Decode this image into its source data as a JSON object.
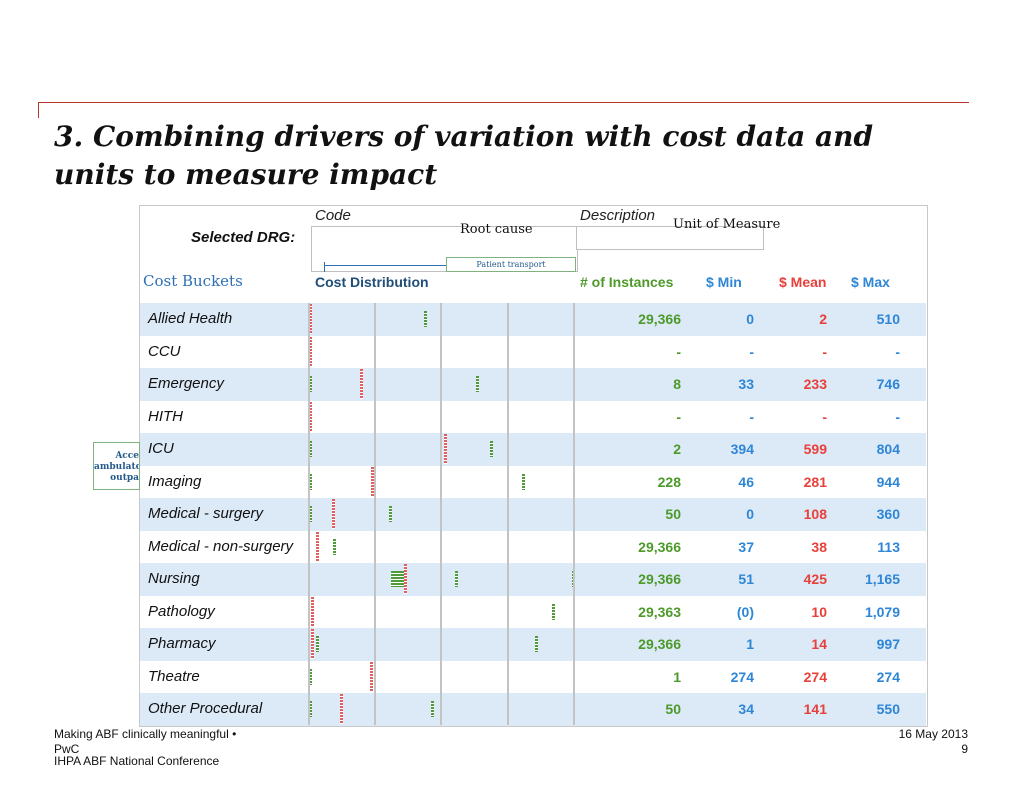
{
  "title": {
    "line1": "3. Combining drivers of variation with cost data and",
    "line2": "units to measure impact"
  },
  "panel": {
    "code_header": "Code",
    "description_header": "Description",
    "selected_drg_label": "Selected DRG:",
    "root_cause_label": "Root cause",
    "unit_of_measure_label": "Unit of Measure",
    "patient_transport_label": "Patient transport",
    "accessory_box_text": "Acce ambulato outpa"
  },
  "columns": {
    "cost_buckets": "Cost Buckets",
    "cost_distribution": "Cost Distribution",
    "instances": "# of Instances",
    "min": "$ Min",
    "mean": "$ Mean",
    "max": "$ Max"
  },
  "rows": [
    {
      "name": "Allied Health",
      "instances": "29,366",
      "min": "0",
      "mean": "2",
      "max": "510"
    },
    {
      "name": "CCU",
      "instances": "-",
      "min": "-",
      "mean": "-",
      "max": "-"
    },
    {
      "name": "Emergency",
      "instances": "8",
      "min": "33",
      "mean": "233",
      "max": "746"
    },
    {
      "name": "HITH",
      "instances": "-",
      "min": "-",
      "mean": "-",
      "max": "-"
    },
    {
      "name": "ICU",
      "instances": "2",
      "min": "394",
      "mean": "599",
      "max": "804"
    },
    {
      "name": "Imaging",
      "instances": "228",
      "min": "46",
      "mean": "281",
      "max": "944"
    },
    {
      "name": "Medical - surgery",
      "instances": "50",
      "min": "0",
      "mean": "108",
      "max": "360"
    },
    {
      "name": "Medical - non-surgery",
      "instances": "29,366",
      "min": "37",
      "mean": "38",
      "max": "113"
    },
    {
      "name": "Nursing",
      "instances": "29,366",
      "min": "51",
      "mean": "425",
      "max": "1,165"
    },
    {
      "name": "Pathology",
      "instances": "29,363",
      "min": "(0)",
      "mean": "10",
      "max": "1,079"
    },
    {
      "name": "Pharmacy",
      "instances": "29,366",
      "min": "1",
      "mean": "14",
      "max": "997"
    },
    {
      "name": "Theatre",
      "instances": "1",
      "min": "274",
      "mean": "274",
      "max": "274"
    },
    {
      "name": "Other Procedural",
      "instances": "50",
      "min": "34",
      "mean": "141",
      "max": "550"
    }
  ],
  "footer": {
    "left_line1": "Making ABF clinically meaningful •",
    "left_line2": "PwC",
    "left_line3": "IHPA ABF National Conference",
    "date": "16 May 2013",
    "page": "9"
  },
  "colors": {
    "instances": "#4d9a2a",
    "min": "#2e86d6",
    "mean": "#e8403a",
    "max": "#2e86d6",
    "row_shade": "#dce9f7",
    "accent_line": "#b33a2a"
  }
}
